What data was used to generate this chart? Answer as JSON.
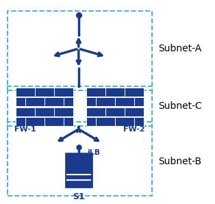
{
  "bg_color": "#ffffff",
  "dark_blue": "#1a3a8c",
  "dashed_blue": "#4ab0d9",
  "subnet_a_label": "Subnet-A",
  "subnet_b_label": "Subnet-B",
  "subnet_c_label": "Subnet-C",
  "fw1_label": "FW-1",
  "fw2_label": "FW-2",
  "ilb_label": "iLB",
  "s1_label": "S1",
  "label_fontsize": 10,
  "fw_fontsize": 8,
  "ilb_fontsize": 8,
  "s1_fontsize": 9
}
